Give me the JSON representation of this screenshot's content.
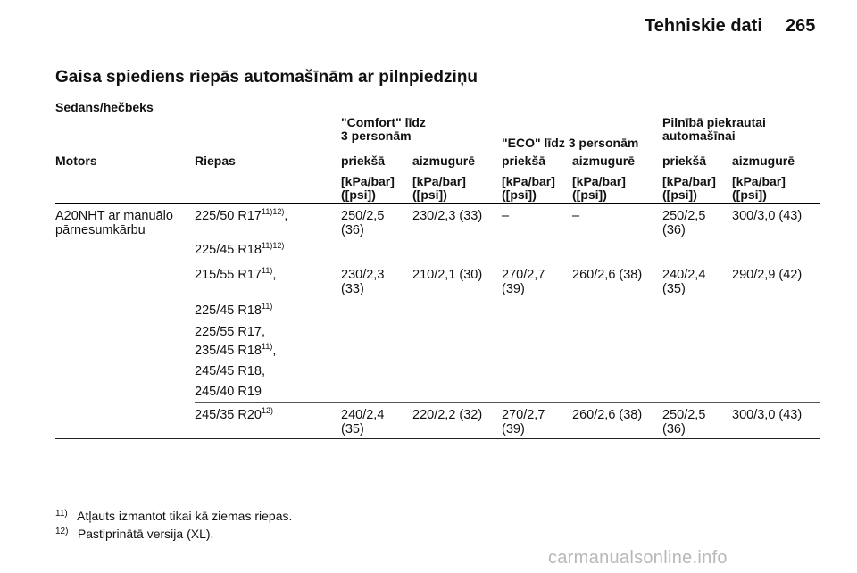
{
  "header": {
    "title": "Tehniskie dati",
    "page_number": "265"
  },
  "heading": "Gaisa spiediens riepās automašīnām ar pilnpiedziņu",
  "subheading": "Sedans/hečbeks",
  "table": {
    "group_headers": {
      "comfort_l1": "\"Comfort\" līdz",
      "comfort_l2": "3 personām",
      "eco": "\"ECO\" līdz 3 personām",
      "full_l1": "Pilnībā piekrautai",
      "full_l2": "automašīnai"
    },
    "col_motors": "Motors",
    "col_riepas": "Riepas",
    "front": "priekšā",
    "rear": "aizmugurē",
    "unit_l1": "[kPa/bar]",
    "unit_l2": "([psi])",
    "motor": {
      "l1": "A20NHT ar manuālo",
      "l2": "pārnesumkārbu"
    },
    "rows": [
      {
        "tires": [
          {
            "text": "225/50 R17",
            "sup": "11)12)",
            "suffix": ","
          },
          {
            "text": "225/45 R18",
            "sup": "11)12)",
            "suffix": ""
          }
        ],
        "comfort_front": [
          "250/2,5",
          "(36)"
        ],
        "comfort_rear": "230/2,3 (33)",
        "eco_front": "–",
        "eco_rear": "–",
        "full_front": [
          "250/2,5",
          "(36)"
        ],
        "full_rear": "300/3,0 (43)"
      },
      {
        "tires": [
          {
            "text": "215/55 R17",
            "sup": "11)",
            "suffix": ","
          },
          {
            "text": "225/45 R18",
            "sup": "11)",
            "suffix": ""
          },
          {
            "text": "225/55 R17,",
            "sup": "",
            "suffix": ""
          },
          {
            "text": "235/45 R18",
            "sup": "11)",
            "suffix": ","
          },
          {
            "text": "245/45 R18,",
            "sup": "",
            "suffix": ""
          },
          {
            "text": "245/40 R19",
            "sup": "",
            "suffix": ""
          }
        ],
        "comfort_front": [
          "230/2,3",
          "(33)"
        ],
        "comfort_rear": "210/2,1 (30)",
        "eco_front": [
          "270/2,7",
          "(39)"
        ],
        "eco_rear": "260/2,6 (38)",
        "full_front": [
          "240/2,4",
          "(35)"
        ],
        "full_rear": "290/2,9 (42)"
      },
      {
        "tires": [
          {
            "text": "245/35 R20",
            "sup": "12)",
            "suffix": ""
          }
        ],
        "comfort_front": [
          "240/2,4",
          "(35)"
        ],
        "comfort_rear": "220/2,2 (32)",
        "eco_front": [
          "270/2,7",
          "(39)"
        ],
        "eco_rear": "260/2,6 (38)",
        "full_front": [
          "250/2,5",
          "(36)"
        ],
        "full_rear": "300/3,0 (43)"
      }
    ]
  },
  "footnotes": [
    {
      "num": "11)",
      "text": "Atļauts izmantot tikai kā ziemas riepas."
    },
    {
      "num": "12)",
      "text": "Pastiprinātā versija (XL)."
    }
  ],
  "watermark": "carmanualsonline.info"
}
